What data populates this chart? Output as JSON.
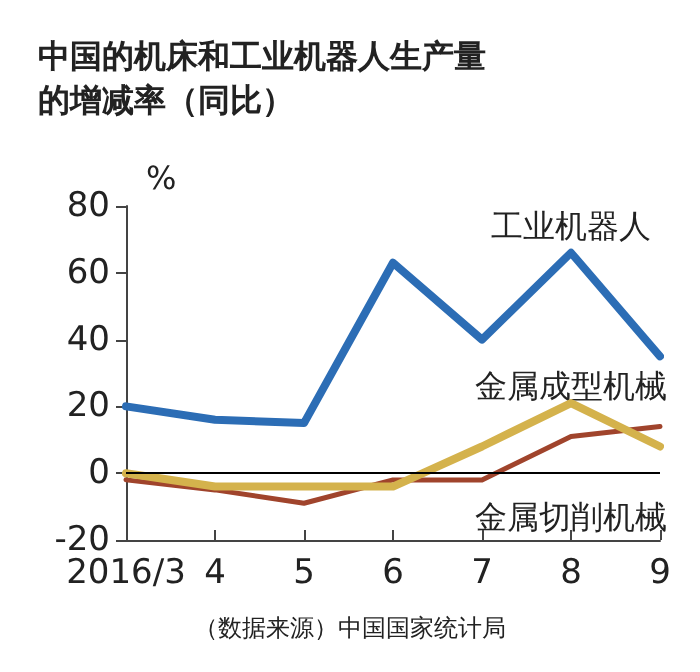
{
  "chart_data": {
    "type": "line",
    "title": "中国的机床和工业机器人生产量的增减率（同比）",
    "ylabel": "%",
    "categories": [
      "2016/3",
      "4",
      "5",
      "6",
      "7",
      "8",
      "9"
    ],
    "series": [
      {
        "name": "工业机器人",
        "color": "#2c6db5",
        "values": [
          20,
          16,
          15,
          63,
          40,
          66,
          35
        ]
      },
      {
        "name": "金属成型机械",
        "color": "#d4b24c",
        "values": [
          0,
          -4,
          -4,
          -4,
          8,
          21,
          8
        ]
      },
      {
        "name": "金属切削机械",
        "color": "#a0442c",
        "values": [
          -2,
          -5,
          -9,
          -2,
          -2,
          11,
          14
        ]
      }
    ],
    "ylim": [
      -20,
      80
    ],
    "yticks": [
      -20,
      0,
      20,
      40,
      60,
      80
    ],
    "grid": false,
    "legend": false,
    "marker": "none",
    "line_style": "solid",
    "ref_lines": [
      {
        "axis": "y",
        "value": 0,
        "color": "#000000"
      }
    ],
    "annotations": [
      "（数据来源）中国国家统计局"
    ]
  }
}
